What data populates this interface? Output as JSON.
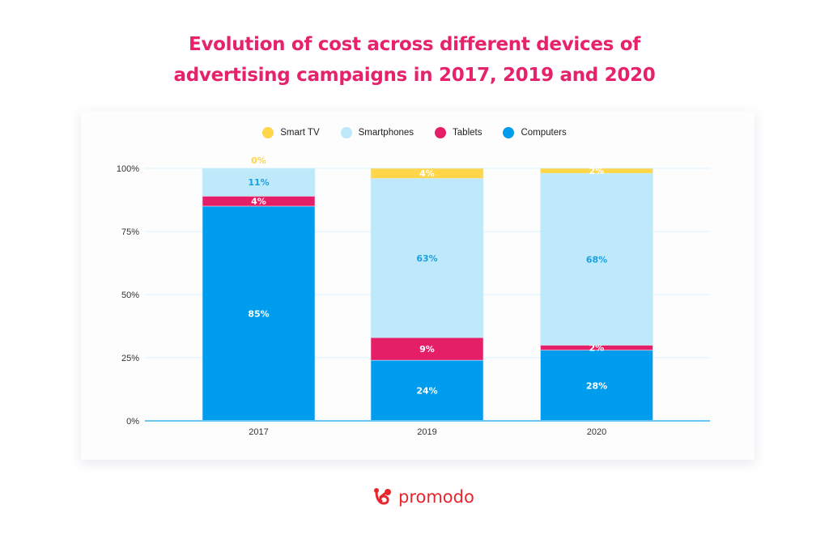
{
  "title_lines": [
    "Evolution of cost across different devices of",
    "advertising campaigns in 2017, 2019 and 2020"
  ],
  "legend": [
    {
      "label": "Smart TV",
      "color": "#ffd54a"
    },
    {
      "label": "Smartphones",
      "color": "#bde9fb"
    },
    {
      "label": "Tablets",
      "color": "#e51f67"
    },
    {
      "label": "Computers",
      "color": "#009cee"
    }
  ],
  "brand": {
    "name": "promodo",
    "color": "#e8262e"
  },
  "chart_data": {
    "type": "bar",
    "stacked": true,
    "title": "Evolution of cost across different devices of advertising campaigns in 2017, 2019 and 2020",
    "categories": [
      "2017",
      "2019",
      "2020"
    ],
    "series": [
      {
        "name": "Computers",
        "values": [
          85,
          24,
          28
        ],
        "color": "#009cee",
        "label_color": "#ffffff"
      },
      {
        "name": "Tablets",
        "values": [
          4,
          9,
          2
        ],
        "color": "#e51f67",
        "label_color": "#ffffff"
      },
      {
        "name": "Smartphones",
        "values": [
          11,
          63,
          68
        ],
        "color": "#bde9fb",
        "label_color": "#1a9fe0"
      },
      {
        "name": "Smart TV",
        "values": [
          0,
          4,
          2
        ],
        "color": "#ffd54a",
        "label_color": "#ffffff",
        "zero_label_color": "#ffd54a"
      }
    ],
    "yticks": [
      "0%",
      "25%",
      "50%",
      "75%",
      "100%"
    ],
    "ylim": [
      0,
      100
    ],
    "xlabel": "",
    "ylabel": "",
    "grid": true,
    "legend_position": "top"
  }
}
